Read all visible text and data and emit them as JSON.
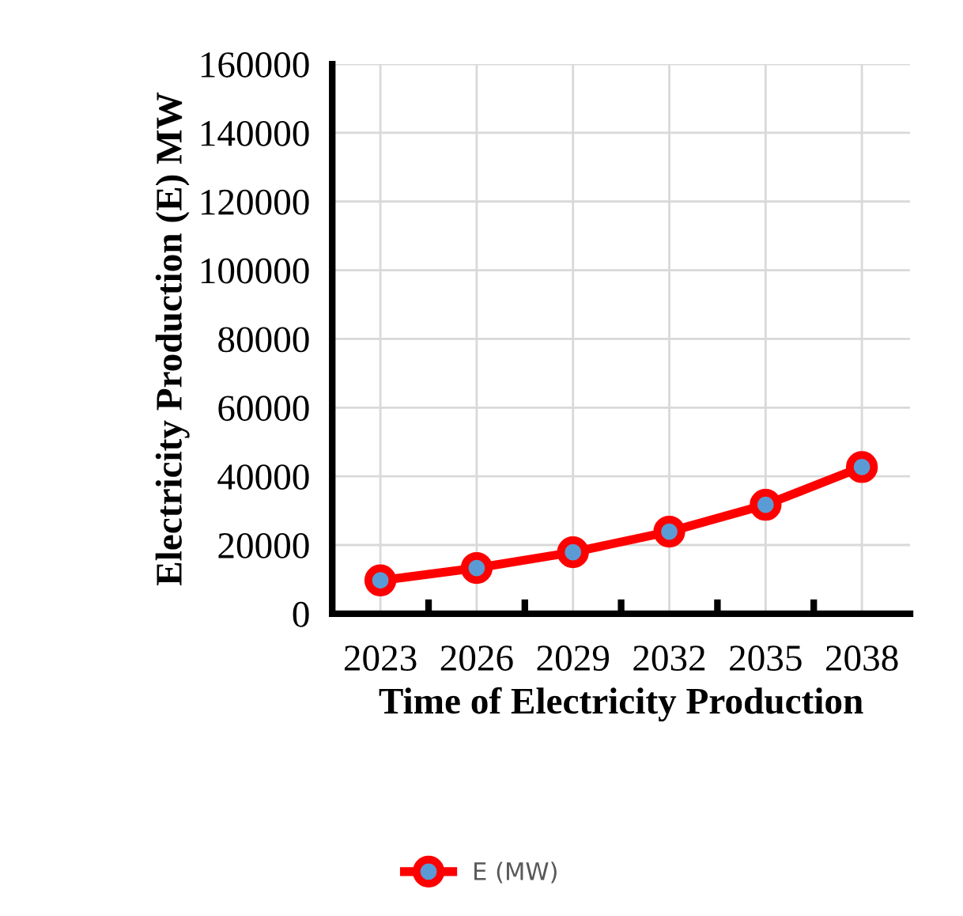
{
  "chart_data": {
    "type": "line",
    "xlabel": "Time of Electricity Production",
    "ylabel": "Electricity Production (E) MW",
    "categories": [
      "2023",
      "2026",
      "2029",
      "2032",
      "2035",
      "2038"
    ],
    "series": [
      {
        "name": "E (MW)",
        "color": "#ff0000",
        "values": [
          9700,
          13300,
          17900,
          23900,
          31700,
          42700
        ]
      }
    ],
    "ylim": [
      0,
      160000
    ],
    "yticks": [
      0,
      20000,
      40000,
      60000,
      80000,
      100000,
      120000,
      140000,
      160000
    ],
    "grid": true,
    "legend": "bottom",
    "marker": "circle",
    "line_style": "solid"
  }
}
